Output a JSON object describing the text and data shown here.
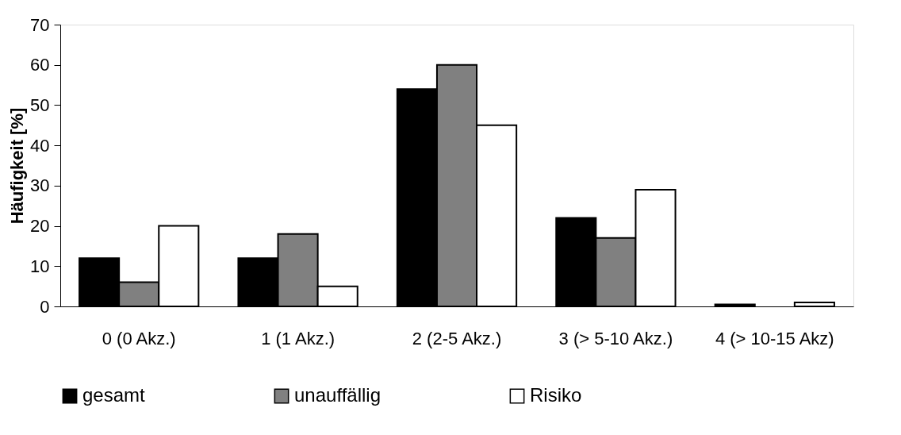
{
  "chart_data": {
    "type": "bar",
    "ylabel": "Häufigkeit [%]",
    "categories": [
      "0 (0 Akz.)",
      "1 (1 Akz.)",
      "2 (2-5 Akz.)",
      "3 (> 5-10 Akz.)",
      "4 (> 10-15 Akz)"
    ],
    "series": [
      {
        "name": "gesamt",
        "color": "#000000",
        "values": [
          12,
          12,
          54,
          22,
          0.5
        ]
      },
      {
        "name": "unauffällig",
        "color": "#808080",
        "values": [
          6,
          18,
          60,
          17,
          null
        ]
      },
      {
        "name": "Risiko",
        "color": "#ffffff",
        "values": [
          20,
          5,
          45,
          29,
          1
        ]
      }
    ],
    "ylim": [
      0,
      70
    ],
    "yticks": [
      0,
      10,
      20,
      30,
      40,
      50,
      60,
      70
    ],
    "grid": false,
    "legend": "bottom"
  }
}
